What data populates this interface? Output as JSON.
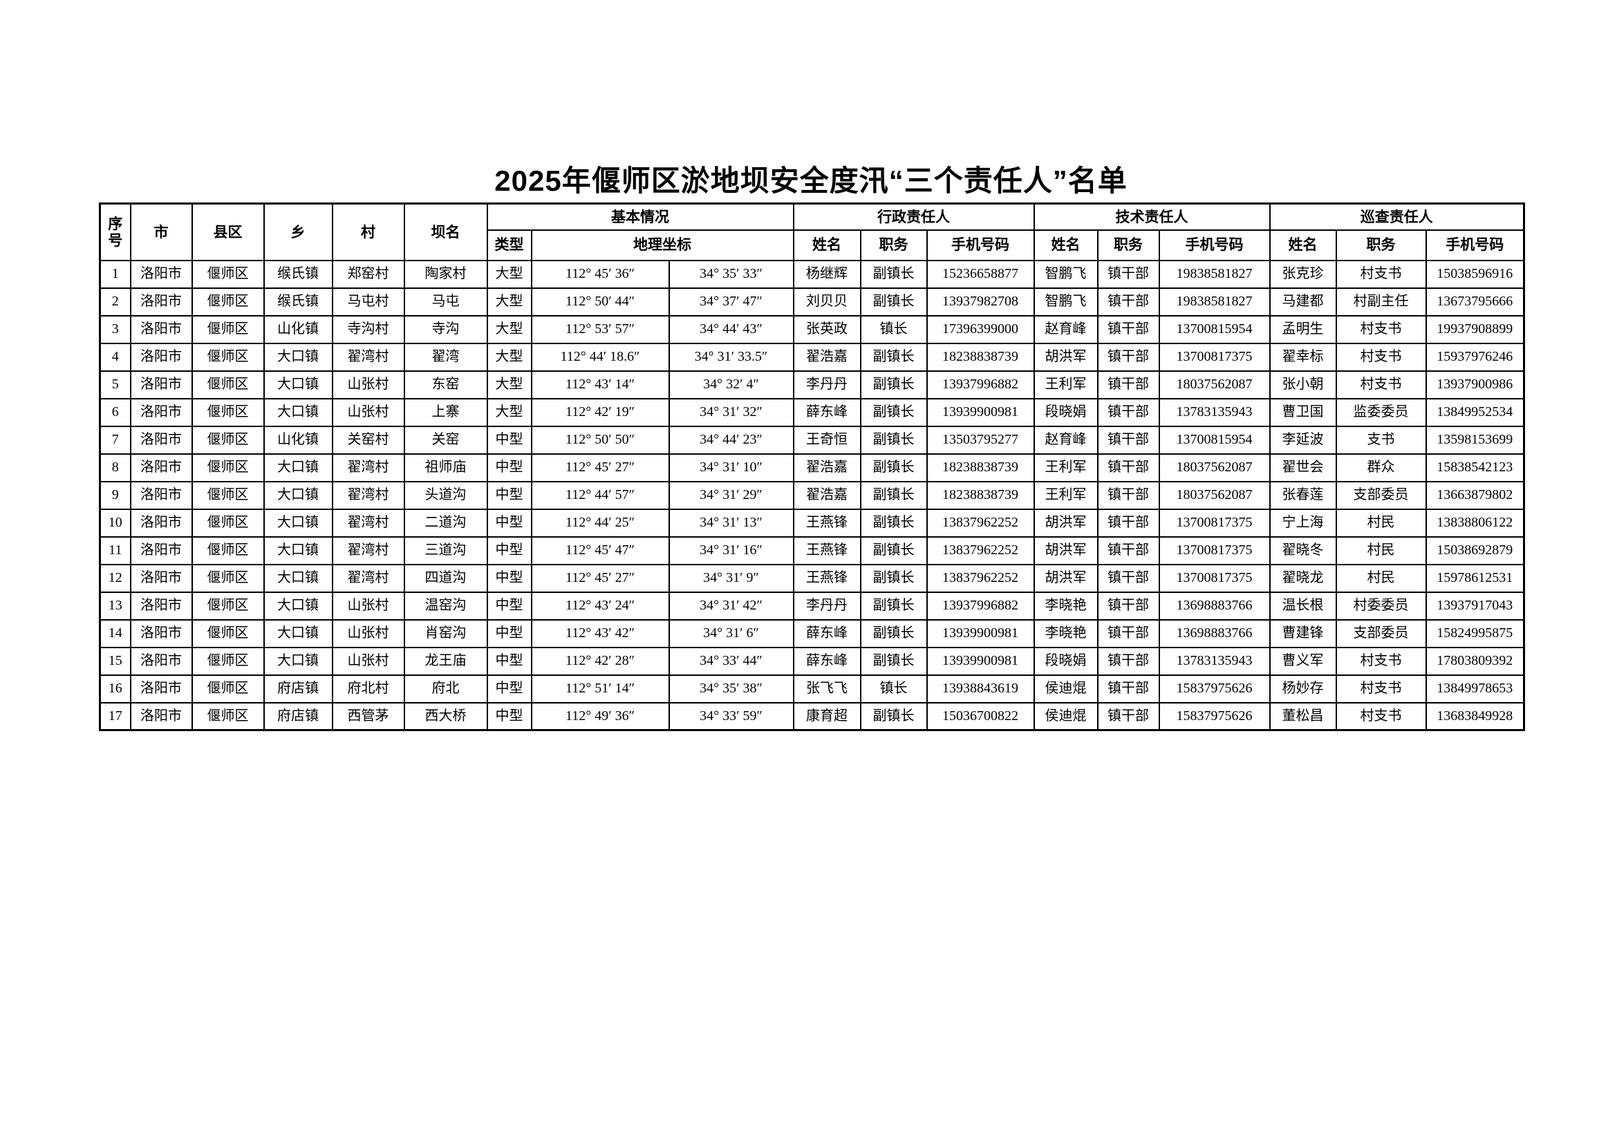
{
  "title": "2025年偃师区淤地坝安全度汛“三个责任人”名单",
  "table": {
    "fixed_headers": {
      "seq": "序号",
      "city": "市",
      "district": "县区",
      "township": "乡",
      "village": "村",
      "dam_name": "坝名"
    },
    "group_headers": {
      "basic_info": "基本情况",
      "admin_responsible": "行政责任人",
      "tech_responsible": "技术责任人",
      "patrol_responsible": "巡查责任人"
    },
    "sub_headers": {
      "type": "类型",
      "geo_coords": "地理坐标",
      "name": "姓名",
      "duty": "职务",
      "phone": "手机号码"
    },
    "rows": [
      [
        "1",
        "洛阳市",
        "偃师区",
        "缑氏镇",
        "郑窑村",
        "陶家村",
        "大型",
        "112° 45′ 36″",
        "34° 35′ 33″",
        "杨继辉",
        "副镇长",
        "15236658877",
        "智鹏飞",
        "镇干部",
        "19838581827",
        "张克珍",
        "村支书",
        "15038596916"
      ],
      [
        "2",
        "洛阳市",
        "偃师区",
        "缑氏镇",
        "马屯村",
        "马屯",
        "大型",
        "112° 50′ 44″",
        "34° 37′ 47″",
        "刘贝贝",
        "副镇长",
        "13937982708",
        "智鹏飞",
        "镇干部",
        "19838581827",
        "马建都",
        "村副主任",
        "13673795666"
      ],
      [
        "3",
        "洛阳市",
        "偃师区",
        "山化镇",
        "寺沟村",
        "寺沟",
        "大型",
        "112° 53′ 57″",
        "34° 44′ 43″",
        "张英政",
        "镇长",
        "17396399000",
        "赵育峰",
        "镇干部",
        "13700815954",
        "孟明生",
        "村支书",
        "19937908899"
      ],
      [
        "4",
        "洛阳市",
        "偃师区",
        "大口镇",
        "翟湾村",
        "翟湾",
        "大型",
        "112° 44′ 18.6″",
        "34° 31′ 33.5″",
        "翟浩嘉",
        "副镇长",
        "18238838739",
        "胡洪军",
        "镇干部",
        "13700817375",
        "翟幸标",
        "村支书",
        "15937976246"
      ],
      [
        "5",
        "洛阳市",
        "偃师区",
        "大口镇",
        "山张村",
        "东窑",
        "大型",
        "112° 43′ 14″",
        "34° 32′ 4″",
        "李丹丹",
        "副镇长",
        "13937996882",
        "王利军",
        "镇干部",
        "18037562087",
        "张小朝",
        "村支书",
        "13937900986"
      ],
      [
        "6",
        "洛阳市",
        "偃师区",
        "大口镇",
        "山张村",
        "上寨",
        "大型",
        "112° 42′ 19″",
        "34° 31′ 32″",
        "薛东峰",
        "副镇长",
        "13939900981",
        "段晓娟",
        "镇干部",
        "13783135943",
        "曹卫国",
        "监委委员",
        "13849952534"
      ],
      [
        "7",
        "洛阳市",
        "偃师区",
        "山化镇",
        "关窑村",
        "关窑",
        "中型",
        "112° 50′ 50″",
        "34° 44′ 23″",
        "王奇恒",
        "副镇长",
        "13503795277",
        "赵育峰",
        "镇干部",
        "13700815954",
        "李延波",
        "支书",
        "13598153699"
      ],
      [
        "8",
        "洛阳市",
        "偃师区",
        "大口镇",
        "翟湾村",
        "祖师庙",
        "中型",
        "112° 45′ 27″",
        "34° 31′ 10″",
        "翟浩嘉",
        "副镇长",
        "18238838739",
        "王利军",
        "镇干部",
        "18037562087",
        "翟世会",
        "群众",
        "15838542123"
      ],
      [
        "9",
        "洛阳市",
        "偃师区",
        "大口镇",
        "翟湾村",
        "头道沟",
        "中型",
        "112° 44′ 57″",
        "34° 31′ 29″",
        "翟浩嘉",
        "副镇长",
        "18238838739",
        "王利军",
        "镇干部",
        "18037562087",
        "张春莲",
        "支部委员",
        "13663879802"
      ],
      [
        "10",
        "洛阳市",
        "偃师区",
        "大口镇",
        "翟湾村",
        "二道沟",
        "中型",
        "112° 44′ 25″",
        "34° 31′ 13″",
        "王燕锋",
        "副镇长",
        "13837962252",
        "胡洪军",
        "镇干部",
        "13700817375",
        "宁上海",
        "村民",
        "13838806122"
      ],
      [
        "11",
        "洛阳市",
        "偃师区",
        "大口镇",
        "翟湾村",
        "三道沟",
        "中型",
        "112° 45′ 47″",
        "34° 31′ 16″",
        "王燕锋",
        "副镇长",
        "13837962252",
        "胡洪军",
        "镇干部",
        "13700817375",
        "翟晓冬",
        "村民",
        "15038692879"
      ],
      [
        "12",
        "洛阳市",
        "偃师区",
        "大口镇",
        "翟湾村",
        "四道沟",
        "中型",
        "112° 45′ 27″",
        "34° 31′ 9″",
        "王燕锋",
        "副镇长",
        "13837962252",
        "胡洪军",
        "镇干部",
        "13700817375",
        "翟晓龙",
        "村民",
        "15978612531"
      ],
      [
        "13",
        "洛阳市",
        "偃师区",
        "大口镇",
        "山张村",
        "温窑沟",
        "中型",
        "112° 43′ 24″",
        "34° 31′ 42″",
        "李丹丹",
        "副镇长",
        "13937996882",
        "李晓艳",
        "镇干部",
        "13698883766",
        "温长根",
        "村委委员",
        "13937917043"
      ],
      [
        "14",
        "洛阳市",
        "偃师区",
        "大口镇",
        "山张村",
        "肖窑沟",
        "中型",
        "112° 43′ 42″",
        "34° 31′ 6″",
        "薛东峰",
        "副镇长",
        "13939900981",
        "李晓艳",
        "镇干部",
        "13698883766",
        "曹建锋",
        "支部委员",
        "15824995875"
      ],
      [
        "15",
        "洛阳市",
        "偃师区",
        "大口镇",
        "山张村",
        "龙王庙",
        "中型",
        "112° 42′ 28″",
        "34° 33′ 44″",
        "薛东峰",
        "副镇长",
        "13939900981",
        "段晓娟",
        "镇干部",
        "13783135943",
        "曹义军",
        "村支书",
        "17803809392"
      ],
      [
        "16",
        "洛阳市",
        "偃师区",
        "府店镇",
        "府北村",
        "府北",
        "中型",
        "112° 51′ 14″",
        "34° 35′ 38″",
        "张飞飞",
        "镇长",
        "13938843619",
        "侯迪焜",
        "镇干部",
        "15837975626",
        "杨妙存",
        "村支书",
        "13849978653"
      ],
      [
        "17",
        "洛阳市",
        "偃师区",
        "府店镇",
        "西管茅",
        "西大桥",
        "中型",
        "112° 49′ 36″",
        "34° 33′ 59″",
        "康育超",
        "副镇长",
        "15036700822",
        "侯迪焜",
        "镇干部",
        "15837975626",
        "董松昌",
        "村支书",
        "13683849928"
      ]
    ]
  }
}
